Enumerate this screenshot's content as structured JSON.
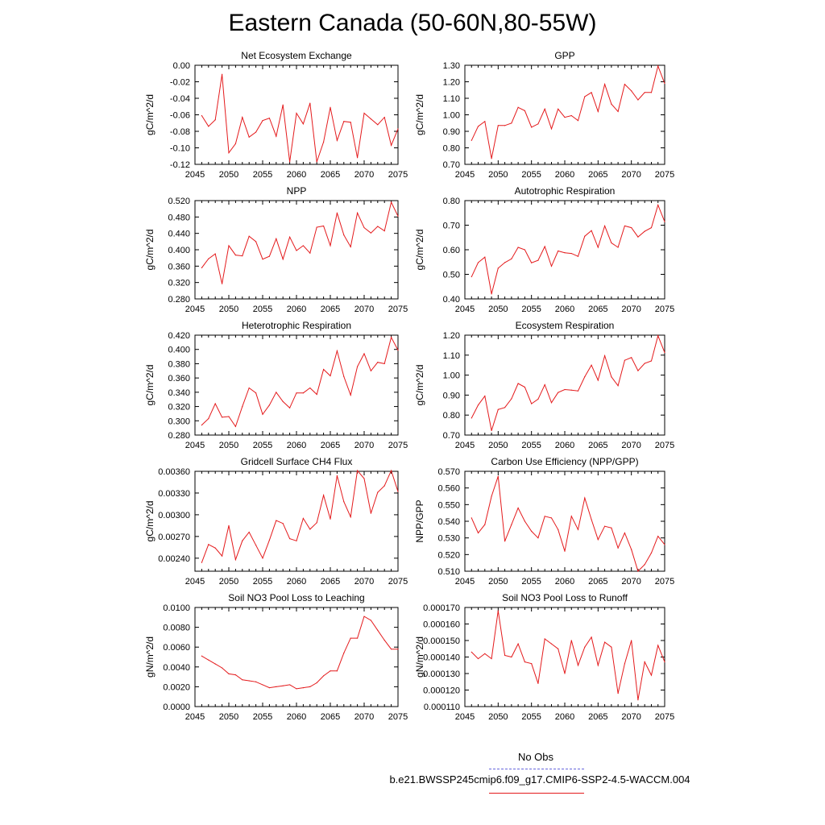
{
  "title": "Eastern Canada (50-60N,80-55W)",
  "legend": {
    "obs_label": "No Obs",
    "run_label": "b.e21.BWSSP245cmip6.f09_g17.CMIP6-SSP2-4.5-WACCM.004",
    "obs_color": "#6666dd",
    "run_color": "#e41a1c"
  },
  "chart_data": [
    {
      "type": "line",
      "title": "Net Ecosystem Exchange",
      "xlabel": "",
      "ylabel": "gC/m^2/d",
      "xlim": [
        2045,
        2075
      ],
      "ylim": [
        -0.12,
        0.0
      ],
      "x_ticks": [
        "2045",
        "2050",
        "2055",
        "2060",
        "2065",
        "2070",
        "2075"
      ],
      "y_ticks": [
        "0.00",
        "-0.02",
        "-0.04",
        "-0.06",
        "-0.08",
        "-0.10",
        "-0.12"
      ],
      "y_tick_values": [
        0.0,
        -0.02,
        -0.04,
        -0.06,
        -0.08,
        -0.1,
        -0.12
      ],
      "x": [
        2046,
        2047,
        2048,
        2049,
        2050,
        2051,
        2052,
        2053,
        2054,
        2055,
        2056,
        2057,
        2058,
        2059,
        2060,
        2061,
        2062,
        2063,
        2064,
        2065,
        2066,
        2067,
        2068,
        2069,
        2070,
        2071,
        2072,
        2073,
        2074,
        2075
      ],
      "values": [
        -0.061,
        -0.074,
        -0.066,
        -0.011,
        -0.106,
        -0.095,
        -0.063,
        -0.087,
        -0.081,
        -0.067,
        -0.064,
        -0.086,
        -0.048,
        -0.117,
        -0.058,
        -0.071,
        -0.046,
        -0.117,
        -0.093,
        -0.051,
        -0.091,
        -0.068,
        -0.069,
        -0.112,
        -0.058,
        -0.065,
        -0.072,
        -0.063,
        -0.097,
        -0.077
      ]
    },
    {
      "type": "line",
      "title": "GPP",
      "xlabel": "",
      "ylabel": "gC/m^2/d",
      "xlim": [
        2045,
        2075
      ],
      "ylim": [
        0.7,
        1.3
      ],
      "x_ticks": [
        "2045",
        "2050",
        "2055",
        "2060",
        "2065",
        "2070",
        "2075"
      ],
      "y_ticks": [
        "1.30",
        "1.20",
        "1.10",
        "1.00",
        "0.90",
        "0.80",
        "0.70"
      ],
      "y_tick_values": [
        1.3,
        1.2,
        1.1,
        1.0,
        0.9,
        0.8,
        0.7
      ],
      "x": [
        2046,
        2047,
        2048,
        2049,
        2050,
        2051,
        2052,
        2053,
        2054,
        2055,
        2056,
        2057,
        2058,
        2059,
        2060,
        2061,
        2062,
        2063,
        2064,
        2065,
        2066,
        2067,
        2068,
        2069,
        2070,
        2071,
        2072,
        2073,
        2074,
        2075
      ],
      "values": [
        0.845,
        0.93,
        0.96,
        0.735,
        0.935,
        0.935,
        0.95,
        1.045,
        1.025,
        0.925,
        0.945,
        1.035,
        0.915,
        1.035,
        0.985,
        0.995,
        0.965,
        1.11,
        1.135,
        1.02,
        1.185,
        1.065,
        1.02,
        1.185,
        1.145,
        1.09,
        1.135,
        1.135,
        1.295,
        1.19
      ]
    },
    {
      "type": "line",
      "title": "NPP",
      "xlabel": "",
      "ylabel": "gC/m^2/d",
      "xlim": [
        2045,
        2075
      ],
      "ylim": [
        0.28,
        0.52
      ],
      "x_ticks": [
        "2045",
        "2050",
        "2055",
        "2060",
        "2065",
        "2070",
        "2075"
      ],
      "y_ticks": [
        "0.520",
        "0.480",
        "0.440",
        "0.400",
        "0.360",
        "0.320",
        "0.280"
      ],
      "y_tick_values": [
        0.52,
        0.48,
        0.44,
        0.4,
        0.36,
        0.32,
        0.28
      ],
      "x": [
        2046,
        2047,
        2048,
        2049,
        2050,
        2051,
        2052,
        2053,
        2054,
        2055,
        2056,
        2057,
        2058,
        2059,
        2060,
        2061,
        2062,
        2063,
        2064,
        2065,
        2066,
        2067,
        2068,
        2069,
        2070,
        2071,
        2072,
        2073,
        2074,
        2075
      ],
      "values": [
        0.356,
        0.378,
        0.39,
        0.317,
        0.41,
        0.387,
        0.385,
        0.433,
        0.42,
        0.377,
        0.384,
        0.427,
        0.377,
        0.431,
        0.398,
        0.41,
        0.392,
        0.455,
        0.458,
        0.41,
        0.49,
        0.436,
        0.407,
        0.49,
        0.454,
        0.441,
        0.457,
        0.446,
        0.516,
        0.482
      ]
    },
    {
      "type": "line",
      "title": "Autotrophic Respiration",
      "xlabel": "",
      "ylabel": "gC/m^2/d",
      "xlim": [
        2045,
        2075
      ],
      "ylim": [
        0.4,
        0.8
      ],
      "x_ticks": [
        "2045",
        "2050",
        "2055",
        "2060",
        "2065",
        "2070",
        "2075"
      ],
      "y_ticks": [
        "0.80",
        "0.70",
        "0.60",
        "0.50",
        "0.40"
      ],
      "y_tick_values": [
        0.8,
        0.7,
        0.6,
        0.5,
        0.4
      ],
      "x": [
        2046,
        2047,
        2048,
        2049,
        2050,
        2051,
        2052,
        2053,
        2054,
        2055,
        2056,
        2057,
        2058,
        2059,
        2060,
        2061,
        2062,
        2063,
        2064,
        2065,
        2066,
        2067,
        2068,
        2069,
        2070,
        2071,
        2072,
        2073,
        2074,
        2075
      ],
      "values": [
        0.49,
        0.548,
        0.57,
        0.42,
        0.525,
        0.548,
        0.563,
        0.61,
        0.6,
        0.547,
        0.557,
        0.613,
        0.533,
        0.595,
        0.588,
        0.585,
        0.573,
        0.655,
        0.678,
        0.61,
        0.697,
        0.628,
        0.61,
        0.697,
        0.69,
        0.652,
        0.675,
        0.69,
        0.782,
        0.714
      ]
    },
    {
      "type": "line",
      "title": "Heterotrophic Respiration",
      "xlabel": "",
      "ylabel": "gC/m^2/d",
      "xlim": [
        2045,
        2075
      ],
      "ylim": [
        0.28,
        0.42
      ],
      "x_ticks": [
        "2045",
        "2050",
        "2055",
        "2060",
        "2065",
        "2070",
        "2075"
      ],
      "y_ticks": [
        "0.420",
        "0.400",
        "0.380",
        "0.360",
        "0.340",
        "0.320",
        "0.300",
        "0.280"
      ],
      "y_tick_values": [
        0.42,
        0.4,
        0.38,
        0.36,
        0.34,
        0.32,
        0.3,
        0.28
      ],
      "x": [
        2046,
        2047,
        2048,
        2049,
        2050,
        2051,
        2052,
        2053,
        2054,
        2055,
        2056,
        2057,
        2058,
        2059,
        2060,
        2061,
        2062,
        2063,
        2064,
        2065,
        2066,
        2067,
        2068,
        2069,
        2070,
        2071,
        2072,
        2073,
        2074,
        2075
      ],
      "values": [
        0.294,
        0.303,
        0.324,
        0.305,
        0.306,
        0.292,
        0.32,
        0.346,
        0.339,
        0.309,
        0.322,
        0.34,
        0.327,
        0.318,
        0.339,
        0.339,
        0.346,
        0.337,
        0.372,
        0.363,
        0.398,
        0.362,
        0.336,
        0.376,
        0.394,
        0.37,
        0.382,
        0.38,
        0.417,
        0.399
      ]
    },
    {
      "type": "line",
      "title": "Ecosystem Respiration",
      "xlabel": "",
      "ylabel": "gC/m^2/d",
      "xlim": [
        2045,
        2075
      ],
      "ylim": [
        0.7,
        1.2
      ],
      "x_ticks": [
        "2045",
        "2050",
        "2055",
        "2060",
        "2065",
        "2070",
        "2075"
      ],
      "y_ticks": [
        "1.20",
        "1.10",
        "1.00",
        "0.90",
        "0.80",
        "0.70"
      ],
      "y_tick_values": [
        1.2,
        1.1,
        1.0,
        0.9,
        0.8,
        0.7
      ],
      "x": [
        2046,
        2047,
        2048,
        2049,
        2050,
        2051,
        2052,
        2053,
        2054,
        2055,
        2056,
        2057,
        2058,
        2059,
        2060,
        2061,
        2062,
        2063,
        2064,
        2065,
        2066,
        2067,
        2068,
        2069,
        2070,
        2071,
        2072,
        2073,
        2074,
        2075
      ],
      "values": [
        0.785,
        0.85,
        0.895,
        0.722,
        0.828,
        0.838,
        0.882,
        0.958,
        0.94,
        0.857,
        0.88,
        0.952,
        0.862,
        0.913,
        0.928,
        0.925,
        0.921,
        0.992,
        1.05,
        0.974,
        1.097,
        0.991,
        0.947,
        1.074,
        1.088,
        1.022,
        1.059,
        1.071,
        1.197,
        1.113
      ]
    },
    {
      "type": "line",
      "title": "Gridcell Surface CH4 Flux",
      "xlabel": "",
      "ylabel": "gC/m^2/d",
      "xlim": [
        2045,
        2075
      ],
      "ylim": [
        0.00222,
        0.0036
      ],
      "x_ticks": [
        "2045",
        "2050",
        "2055",
        "2060",
        "2065",
        "2070",
        "2075"
      ],
      "y_ticks": [
        "0.00360",
        "0.00330",
        "0.00300",
        "0.00270",
        "0.00240"
      ],
      "y_tick_values": [
        0.0036,
        0.0033,
        0.003,
        0.0027,
        0.0024
      ],
      "x": [
        2046,
        2047,
        2048,
        2049,
        2050,
        2051,
        2052,
        2053,
        2054,
        2055,
        2056,
        2057,
        2058,
        2059,
        2060,
        2061,
        2062,
        2063,
        2064,
        2065,
        2066,
        2067,
        2068,
        2069,
        2070,
        2071,
        2072,
        2073,
        2074,
        2075
      ],
      "values": [
        0.00234,
        0.00259,
        0.00254,
        0.00243,
        0.00285,
        0.00238,
        0.00264,
        0.00276,
        0.00258,
        0.0024,
        0.00265,
        0.00292,
        0.00288,
        0.00267,
        0.00264,
        0.00295,
        0.0028,
        0.00289,
        0.00327,
        0.00294,
        0.00354,
        0.00318,
        0.00297,
        0.00361,
        0.0035,
        0.00302,
        0.00331,
        0.0034,
        0.00361,
        0.00332
      ]
    },
    {
      "type": "line",
      "title": "Carbon Use Efficiency (NPP/GPP)",
      "xlabel": "",
      "ylabel": "NPP/GPP",
      "xlim": [
        2045,
        2075
      ],
      "ylim": [
        0.51,
        0.57
      ],
      "x_ticks": [
        "2045",
        "2050",
        "2055",
        "2060",
        "2065",
        "2070",
        "2075"
      ],
      "y_ticks": [
        "0.570",
        "0.560",
        "0.550",
        "0.540",
        "0.530",
        "0.520",
        "0.510"
      ],
      "y_tick_values": [
        0.57,
        0.56,
        0.55,
        0.54,
        0.53,
        0.52,
        0.51
      ],
      "x": [
        2046,
        2047,
        2048,
        2049,
        2050,
        2051,
        2052,
        2053,
        2054,
        2055,
        2056,
        2057,
        2058,
        2059,
        2060,
        2061,
        2062,
        2063,
        2064,
        2065,
        2066,
        2067,
        2068,
        2069,
        2070,
        2071,
        2072,
        2073,
        2074,
        2075
      ],
      "values": [
        0.542,
        0.533,
        0.538,
        0.555,
        0.567,
        0.528,
        0.538,
        0.548,
        0.54,
        0.534,
        0.53,
        0.543,
        0.542,
        0.535,
        0.522,
        0.543,
        0.535,
        0.554,
        0.541,
        0.529,
        0.537,
        0.536,
        0.524,
        0.533,
        0.523,
        0.51,
        0.514,
        0.521,
        0.531,
        0.526
      ]
    },
    {
      "type": "line",
      "title": "Soil NO3 Pool Loss to Leaching",
      "xlabel": "",
      "ylabel": "gN/m^2/d",
      "xlim": [
        2045,
        2075
      ],
      "ylim": [
        0.0,
        0.01
      ],
      "x_ticks": [
        "2045",
        "2050",
        "2055",
        "2060",
        "2065",
        "2070",
        "2075"
      ],
      "y_ticks": [
        "0.0100",
        "0.0080",
        "0.0060",
        "0.0040",
        "0.0020",
        "0.0000"
      ],
      "y_tick_values": [
        0.01,
        0.008,
        0.006,
        0.004,
        0.002,
        0.0
      ],
      "x": [
        2046,
        2047,
        2048,
        2049,
        2050,
        2051,
        2052,
        2053,
        2054,
        2055,
        2056,
        2057,
        2058,
        2059,
        2060,
        2061,
        2062,
        2063,
        2064,
        2065,
        2066,
        2067,
        2068,
        2069,
        2070,
        2071,
        2072,
        2073,
        2074,
        2075
      ],
      "values": [
        0.0051,
        0.0047,
        0.0043,
        0.0039,
        0.0033,
        0.0032,
        0.0027,
        0.0026,
        0.0025,
        0.0022,
        0.0019,
        0.002,
        0.0021,
        0.0022,
        0.0018,
        0.0019,
        0.002,
        0.0024,
        0.0031,
        0.0036,
        0.0036,
        0.0054,
        0.0069,
        0.0069,
        0.0091,
        0.0087,
        0.0077,
        0.0067,
        0.0058,
        0.0058
      ]
    },
    {
      "type": "line",
      "title": "Soil NO3 Pool Loss to Runoff",
      "xlabel": "",
      "ylabel": "gN/m^2/d",
      "xlim": [
        2045,
        2075
      ],
      "ylim": [
        0.00011,
        0.00017
      ],
      "x_ticks": [
        "2045",
        "2050",
        "2055",
        "2060",
        "2065",
        "2070",
        "2075"
      ],
      "y_ticks": [
        "0.000170",
        "0.000160",
        "0.000150",
        "0.000140",
        "0.000130",
        "0.000120",
        "0.000110"
      ],
      "y_tick_values": [
        0.00017,
        0.00016,
        0.00015,
        0.00014,
        0.00013,
        0.00012,
        0.00011
      ],
      "x": [
        2046,
        2047,
        2048,
        2049,
        2050,
        2051,
        2052,
        2053,
        2054,
        2055,
        2056,
        2057,
        2058,
        2059,
        2060,
        2061,
        2062,
        2063,
        2064,
        2065,
        2066,
        2067,
        2068,
        2069,
        2070,
        2071,
        2072,
        2073,
        2074,
        2075
      ],
      "values": [
        0.000143,
        0.000139,
        0.000142,
        0.000139,
        0.000168,
        0.000141,
        0.00014,
        0.000148,
        0.000137,
        0.000136,
        0.000124,
        0.000151,
        0.000148,
        0.000145,
        0.00013,
        0.00015,
        0.000135,
        0.000146,
        0.000152,
        0.000135,
        0.000149,
        0.000146,
        0.000118,
        0.000136,
        0.00015,
        0.000114,
        0.000137,
        0.000129,
        0.000147,
        0.000137
      ]
    }
  ]
}
